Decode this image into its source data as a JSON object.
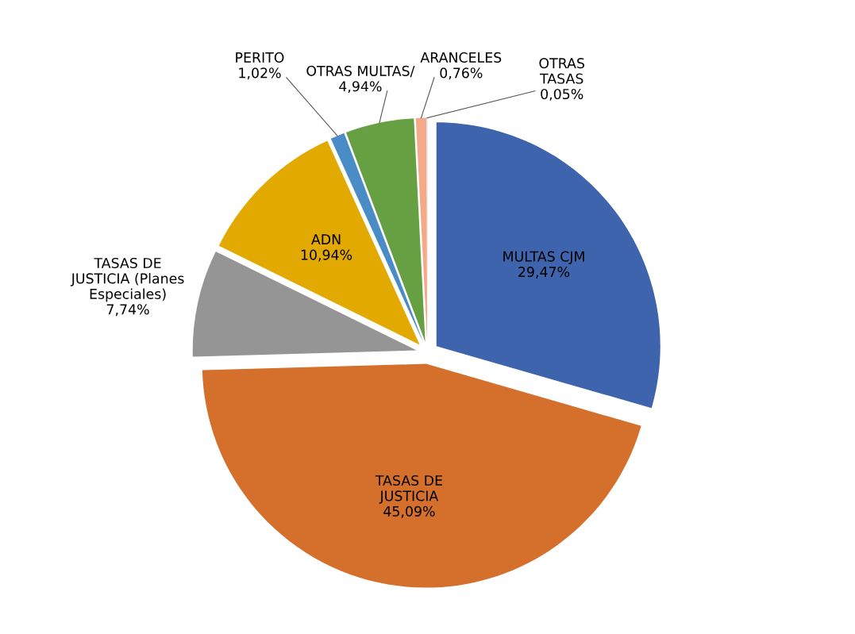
{
  "chart_data": {
    "type": "pie",
    "categories": [
      "MULTAS CJM",
      "TASAS DE\nJUSTICIA",
      "TASAS DE\nJUSTICIA (Planes\nEspeciales)",
      "ADN",
      "PERITO",
      "OTRAS MULTAS/",
      "ARANCELES",
      "OTRAS\nTASAS"
    ],
    "values": [
      29.47,
      45.09,
      7.74,
      10.94,
      1.02,
      4.94,
      0.76,
      0.05
    ],
    "colors": [
      "#3e64ad",
      "#d4702b",
      "#959595",
      "#e2a900",
      "#4a8cc6",
      "#67a042",
      "#f4a988",
      "#c9d6ee"
    ],
    "value_labels": [
      "29,47%",
      "45,09%",
      "7,74%",
      "10,94%",
      "1,02%",
      "4,94%",
      "0,76%",
      "0,05%"
    ]
  }
}
